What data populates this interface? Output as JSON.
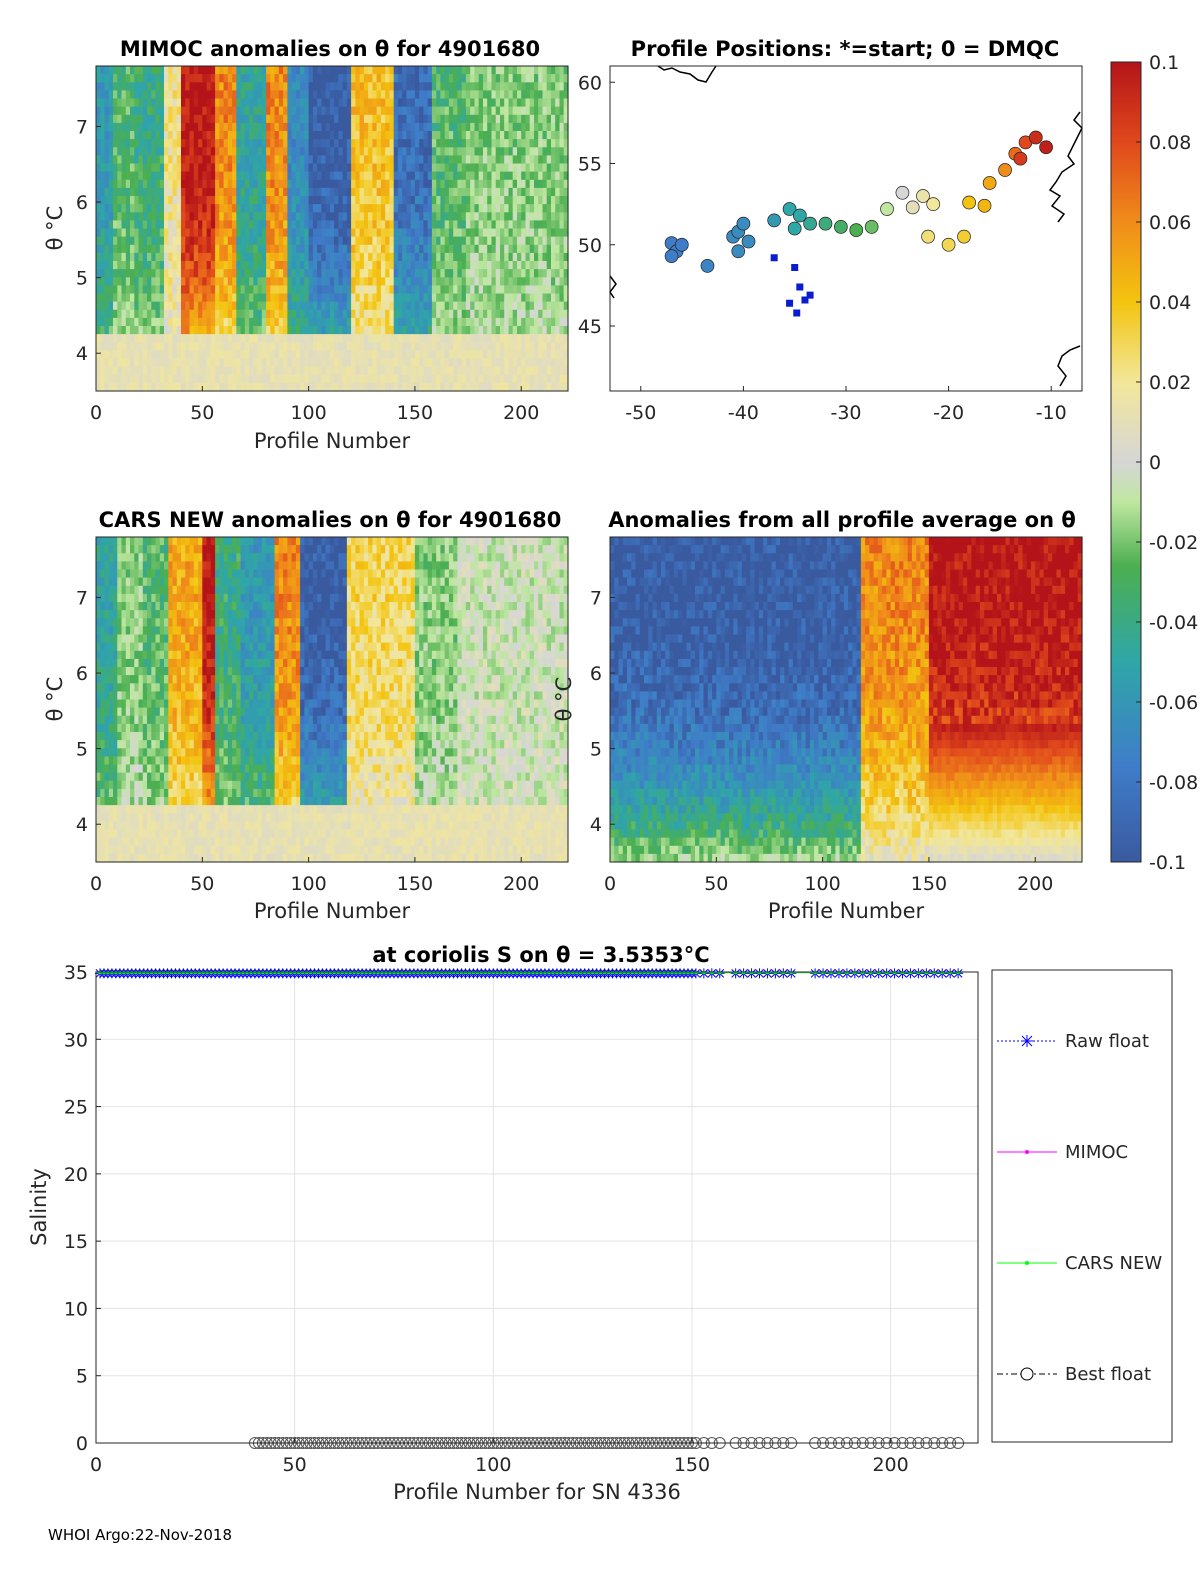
{
  "footer": "WHOI Argo:22-Nov-2018",
  "chart_data": [
    {
      "id": "mimoc",
      "type": "heatmap",
      "title": "MIMOC anomalies on θ  for 4901680",
      "xlabel": "Profile Number",
      "ylabel": "θ °C",
      "xlim": [
        0,
        222
      ],
      "ylim": [
        3.5,
        7.8
      ],
      "xticks": [
        "0",
        "50",
        "100",
        "150",
        "200"
      ],
      "yticks": [
        "4",
        "5",
        "6",
        "7"
      ],
      "clim": [
        -0.1,
        0.1
      ],
      "columns": [
        {
          "x0": 0,
          "x1": 8,
          "level": -0.06
        },
        {
          "x0": 8,
          "x1": 18,
          "level": -0.03
        },
        {
          "x0": 18,
          "x1": 32,
          "level": -0.04
        },
        {
          "x0": 32,
          "x1": 40,
          "level": 0.02
        },
        {
          "x0": 40,
          "x1": 56,
          "level": 0.1
        },
        {
          "x0": 56,
          "x1": 66,
          "level": 0.06
        },
        {
          "x0": 66,
          "x1": 80,
          "level": -0.05
        },
        {
          "x0": 80,
          "x1": 90,
          "level": 0.06
        },
        {
          "x0": 90,
          "x1": 100,
          "level": -0.07
        },
        {
          "x0": 100,
          "x1": 120,
          "level": -0.1
        },
        {
          "x0": 120,
          "x1": 140,
          "level": 0.04
        },
        {
          "x0": 140,
          "x1": 158,
          "level": -0.09
        },
        {
          "x0": 158,
          "x1": 175,
          "level": -0.03
        },
        {
          "x0": 175,
          "x1": 222,
          "level": -0.02
        }
      ]
    },
    {
      "id": "positions",
      "type": "scatter",
      "title": "Profile Positions: *=start; 0 = DMQC",
      "xlim": [
        -53,
        -7
      ],
      "ylim": [
        41,
        61
      ],
      "xticks": [
        "-50",
        "-40",
        "-30",
        "-20",
        "-10"
      ],
      "yticks": [
        "45",
        "50",
        "55",
        "60"
      ],
      "points": [
        {
          "lon": -47,
          "lat": 50.1,
          "c": -0.08
        },
        {
          "lon": -46.5,
          "lat": 49.6,
          "c": -0.08
        },
        {
          "lon": -46,
          "lat": 50.0,
          "c": -0.08
        },
        {
          "lon": -47,
          "lat": 49.3,
          "c": -0.08
        },
        {
          "lon": -43.5,
          "lat": 48.7,
          "c": -0.075
        },
        {
          "lon": -41,
          "lat": 50.5,
          "c": -0.07
        },
        {
          "lon": -40.5,
          "lat": 50.8,
          "c": -0.07
        },
        {
          "lon": -40,
          "lat": 51.3,
          "c": -0.07
        },
        {
          "lon": -39.5,
          "lat": 50.2,
          "c": -0.07
        },
        {
          "lon": -40.5,
          "lat": 49.6,
          "c": -0.07
        },
        {
          "lon": -37,
          "lat": 51.5,
          "c": -0.06
        },
        {
          "lon": -35.5,
          "lat": 52.2,
          "c": -0.05
        },
        {
          "lon": -34.5,
          "lat": 51.8,
          "c": -0.05
        },
        {
          "lon": -35,
          "lat": 51.0,
          "c": -0.05
        },
        {
          "lon": -33.5,
          "lat": 51.3,
          "c": -0.045
        },
        {
          "lon": -32,
          "lat": 51.3,
          "c": -0.04
        },
        {
          "lon": -30.5,
          "lat": 51.1,
          "c": -0.035
        },
        {
          "lon": -29,
          "lat": 50.9,
          "c": -0.03
        },
        {
          "lon": -27.5,
          "lat": 51.1,
          "c": -0.025
        },
        {
          "lon": -26,
          "lat": 52.2,
          "c": -0.01
        },
        {
          "lon": -24.5,
          "lat": 53.2,
          "c": 0.0
        },
        {
          "lon": -23.5,
          "lat": 52.3,
          "c": 0.01
        },
        {
          "lon": -22.5,
          "lat": 53.0,
          "c": 0.015
        },
        {
          "lon": -21.5,
          "lat": 52.5,
          "c": 0.02
        },
        {
          "lon": -22,
          "lat": 50.5,
          "c": 0.025
        },
        {
          "lon": -20,
          "lat": 50.0,
          "c": 0.03
        },
        {
          "lon": -18.5,
          "lat": 50.5,
          "c": 0.035
        },
        {
          "lon": -18,
          "lat": 52.6,
          "c": 0.04
        },
        {
          "lon": -16.5,
          "lat": 52.4,
          "c": 0.045
        },
        {
          "lon": -16,
          "lat": 53.8,
          "c": 0.05
        },
        {
          "lon": -14.5,
          "lat": 54.6,
          "c": 0.06
        },
        {
          "lon": -13.5,
          "lat": 55.6,
          "c": 0.07
        },
        {
          "lon": -12.5,
          "lat": 56.3,
          "c": 0.08
        },
        {
          "lon": -11.5,
          "lat": 56.6,
          "c": 0.09
        },
        {
          "lon": -10.5,
          "lat": 56.0,
          "c": 0.095
        },
        {
          "lon": -13,
          "lat": 55.3,
          "c": 0.085
        }
      ],
      "squares": [
        {
          "lon": -37,
          "lat": 49.2
        },
        {
          "lon": -35,
          "lat": 48.6
        },
        {
          "lon": -34.5,
          "lat": 47.4
        },
        {
          "lon": -33.5,
          "lat": 46.9
        },
        {
          "lon": -34,
          "lat": 46.6
        },
        {
          "lon": -35.5,
          "lat": 46.4
        },
        {
          "lon": -34.8,
          "lat": 45.8
        }
      ]
    },
    {
      "id": "cars",
      "type": "heatmap",
      "title": "CARS NEW anomalies on θ for 4901680",
      "xlabel": "Profile Number",
      "ylabel": "θ °C",
      "xlim": [
        0,
        222
      ],
      "ylim": [
        3.5,
        7.8
      ],
      "xticks": [
        "0",
        "50",
        "100",
        "150",
        "200"
      ],
      "yticks": [
        "4",
        "5",
        "6",
        "7"
      ],
      "clim": [
        -0.1,
        0.1
      ],
      "columns": [
        {
          "x0": 0,
          "x1": 10,
          "level": -0.05
        },
        {
          "x0": 10,
          "x1": 22,
          "level": -0.02
        },
        {
          "x0": 22,
          "x1": 34,
          "level": -0.03
        },
        {
          "x0": 34,
          "x1": 50,
          "level": 0.05
        },
        {
          "x0": 50,
          "x1": 56,
          "level": 0.1
        },
        {
          "x0": 56,
          "x1": 68,
          "level": -0.04
        },
        {
          "x0": 68,
          "x1": 84,
          "level": -0.06
        },
        {
          "x0": 84,
          "x1": 96,
          "level": 0.06
        },
        {
          "x0": 96,
          "x1": 118,
          "level": -0.1
        },
        {
          "x0": 118,
          "x1": 150,
          "level": 0.03
        },
        {
          "x0": 150,
          "x1": 170,
          "level": -0.02
        },
        {
          "x0": 170,
          "x1": 222,
          "level": -0.005
        }
      ]
    },
    {
      "id": "allavg",
      "type": "heatmap",
      "title": "Anomalies from all profile average on θ",
      "xlabel": "Profile Number",
      "ylabel": "θ °C",
      "xlim": [
        0,
        222
      ],
      "ylim": [
        3.5,
        7.8
      ],
      "xticks": [
        "0",
        "50",
        "100",
        "150",
        "200"
      ],
      "yticks": [
        "4",
        "5",
        "6",
        "7"
      ],
      "clim": [
        -0.1,
        0.1
      ],
      "columns": [
        {
          "x0": 0,
          "x1": 118,
          "level": -0.1
        },
        {
          "x0": 118,
          "x1": 150,
          "level": 0.06
        },
        {
          "x0": 150,
          "x1": 222,
          "level": 0.1
        }
      ]
    },
    {
      "id": "salinity",
      "type": "line",
      "title": "at coriolis S on θ = 3.5353°C",
      "xlabel": "Profile Number for SN 4336",
      "ylabel": "Salinity",
      "xlim": [
        0,
        222
      ],
      "ylim": [
        0,
        35
      ],
      "xticks": [
        "0",
        "50",
        "100",
        "150",
        "200"
      ],
      "yticks": [
        "0",
        "5",
        "10",
        "15",
        "20",
        "25",
        "30",
        "35"
      ],
      "series": [
        {
          "name": "Raw float",
          "value": 34.9,
          "x_start": 1,
          "x_end": 218,
          "color": "#0000ff"
        },
        {
          "name": "MIMOC",
          "value": 34.95,
          "x_start": 1,
          "x_end": 218,
          "color": "#ff00ff"
        },
        {
          "name": "CARS NEW",
          "value": 34.95,
          "x_start": 1,
          "x_end": 218,
          "color": "#00ff00"
        },
        {
          "name": "Best float",
          "value": 0,
          "x_start": 40,
          "x_end": 218,
          "color": "#000000"
        }
      ]
    }
  ],
  "colorbar": {
    "ticks": [
      "0.1",
      "0.08",
      "0.06",
      "0.04",
      "0.02",
      "0",
      "-0.02",
      "-0.04",
      "-0.06",
      "-0.08",
      "-0.1"
    ]
  }
}
